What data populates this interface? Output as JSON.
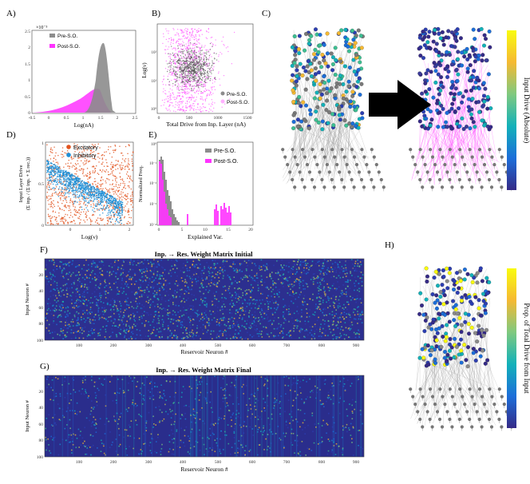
{
  "panels": {
    "A": {
      "label": "A)",
      "exponent": "×10⁻³",
      "xlabel": "Log(nA)",
      "xticks": [
        "-0.5",
        "0",
        "0.5",
        "1",
        "1.5",
        "2",
        "2.5"
      ],
      "yticks": [
        "0",
        "0.5",
        "1",
        "1.5",
        "2",
        "2.5"
      ],
      "legend": [
        "Pre-S.O.",
        "Post-S.O."
      ]
    },
    "B": {
      "label": "B)",
      "xlabel": "Total Drive from Inp. Layer (nA)",
      "ylabel": "Log(ν)",
      "xticks": [
        "0",
        "500",
        "1000",
        "1500"
      ],
      "yticks": [
        "10⁰",
        "10¹",
        "10²"
      ],
      "legend": [
        "Pre-S.O.",
        "Post-S.O."
      ]
    },
    "C": {
      "label": "C)",
      "colorbar_label": "Input Drive (Absolute)"
    },
    "D": {
      "label": "D)",
      "xlabel": "Log(ν)",
      "ylabel_line1": "Input Layer Drive",
      "ylabel_line2": "(Σ inp. / (Σ inp. + Σ rec.))",
      "xticks": [
        "0",
        "1",
        "2"
      ],
      "yticks": [
        "0",
        "0.5",
        "1"
      ],
      "legend": [
        "Excitatory",
        "Inhibitory"
      ]
    },
    "E": {
      "label": "E)",
      "xlabel": "Explained Var.",
      "ylabel": "Normalized Freq.",
      "xticks": [
        "0",
        "5",
        "10",
        "15",
        "20"
      ],
      "yticks": [
        "10⁻⁴",
        "10⁻³",
        "10⁻²",
        "10⁻¹",
        "10⁰"
      ],
      "legend": [
        "Pre-S.O.",
        "Post-S.O."
      ]
    },
    "F": {
      "label": "F)",
      "title": "Inp. → Res. Weight Matrix Initial",
      "xlabel": "Reservoir Neuron #",
      "ylabel": "Input Neuron #",
      "xticks": [
        "100",
        "200",
        "300",
        "400",
        "500",
        "600",
        "700",
        "800",
        "900"
      ],
      "yticks": [
        "20",
        "40",
        "60",
        "80",
        "100"
      ]
    },
    "G": {
      "label": "G)",
      "title": "Inp. → Res. Weight Matrix Final",
      "xlabel": "Reservoir Neuron #",
      "ylabel": "Input Neuron #",
      "xticks": [
        "100",
        "200",
        "300",
        "400",
        "500",
        "600",
        "700",
        "800",
        "900"
      ],
      "yticks": [
        "20",
        "40",
        "60",
        "80",
        "100"
      ]
    },
    "H": {
      "label": "H)",
      "colorbar_label": "Prop. of Total Drive from Input"
    }
  },
  "colors": {
    "pre": "#8c8c8c",
    "post": "#ff33ff",
    "excitatory": "#e2531e",
    "inhibitory": "#1f8fd6",
    "matrix_bg": "#2c2f8f",
    "arrow": "#000000"
  }
}
